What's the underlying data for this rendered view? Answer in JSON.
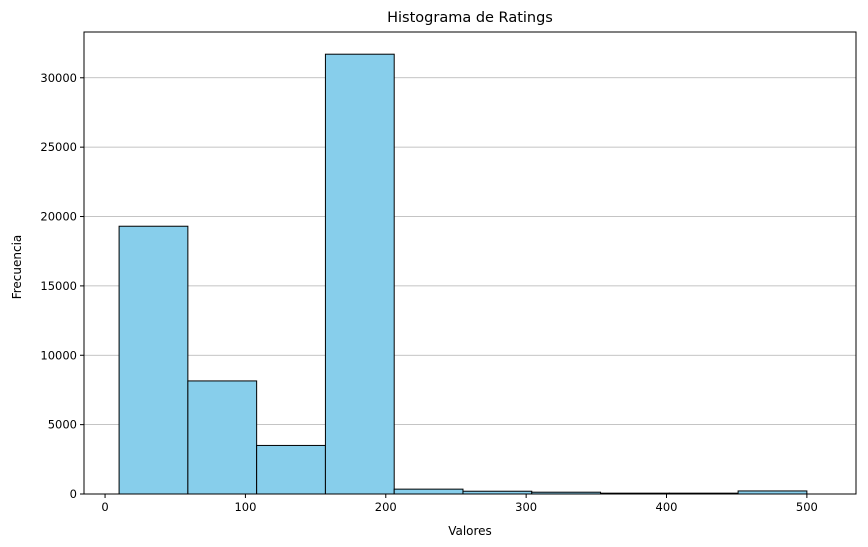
{
  "chart_data": {
    "type": "bar",
    "title": "Histograma de Ratings",
    "xlabel": "Valores",
    "ylabel": "Frecuencia",
    "xlim": [
      -15,
      535
    ],
    "ylim": [
      0,
      33300
    ],
    "xticks": [
      0,
      100,
      200,
      300,
      400,
      500
    ],
    "yticks": [
      0,
      5000,
      10000,
      15000,
      20000,
      25000,
      30000
    ],
    "grid": "y",
    "bar_color": "#87CEEB",
    "edge_color": "#000000",
    "bins": [
      {
        "start": 10,
        "end": 59,
        "value": 19300
      },
      {
        "start": 59,
        "end": 108,
        "value": 8150
      },
      {
        "start": 108,
        "end": 157,
        "value": 3500
      },
      {
        "start": 157,
        "end": 206,
        "value": 31700
      },
      {
        "start": 206,
        "end": 255,
        "value": 350
      },
      {
        "start": 255,
        "end": 304,
        "value": 200
      },
      {
        "start": 304,
        "end": 353,
        "value": 130
      },
      {
        "start": 353,
        "end": 402,
        "value": 60
      },
      {
        "start": 402,
        "end": 451,
        "value": 60
      },
      {
        "start": 451,
        "end": 500,
        "value": 220
      }
    ]
  }
}
